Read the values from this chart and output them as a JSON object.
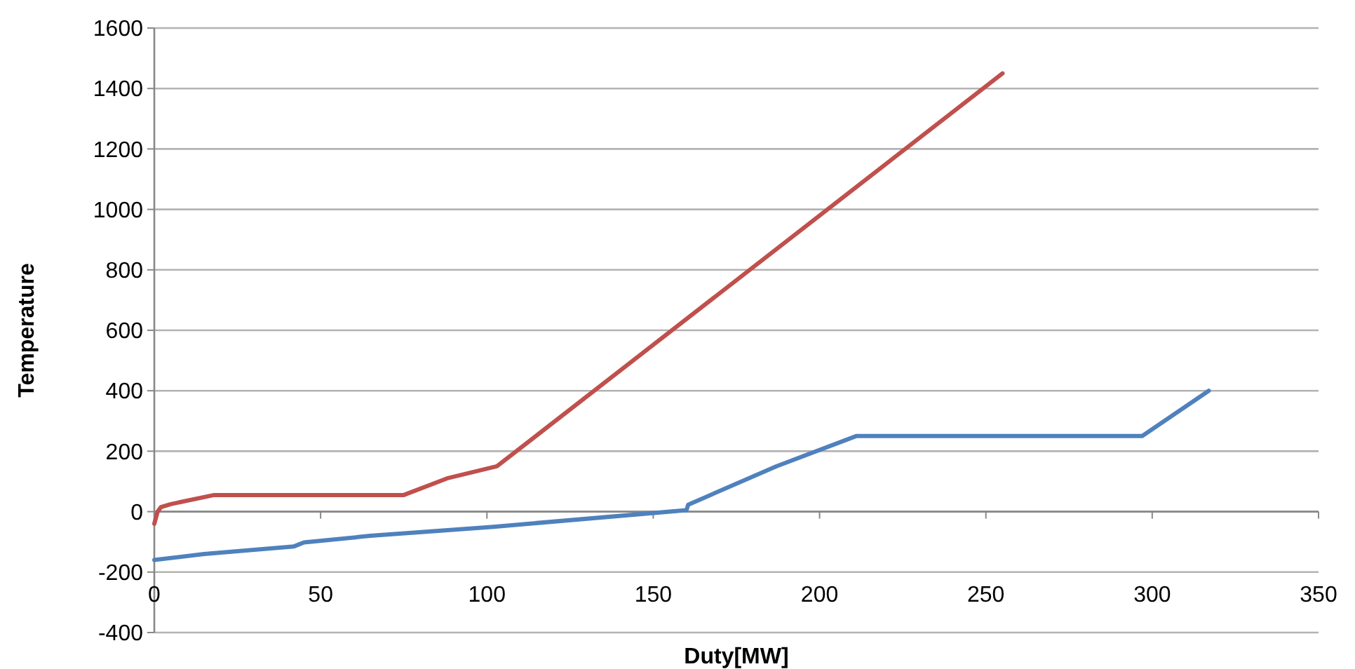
{
  "chart_data": {
    "type": "line",
    "xlabel": "Duty[MW]",
    "ylabel": "Temperature",
    "xlim": [
      0,
      350
    ],
    "xticks": [
      0,
      50,
      100,
      150,
      200,
      250,
      300,
      350
    ],
    "ylim": [
      -400,
      1600
    ],
    "yticks": [
      -400,
      -200,
      0,
      200,
      400,
      600,
      800,
      1000,
      1200,
      1400,
      1600
    ],
    "grid": "y",
    "line_style": "solid",
    "series": [
      {
        "color": "#c0504d",
        "x": [
          0,
          1,
          2,
          5,
          18,
          75,
          88,
          103,
          255
        ],
        "values": [
          -40,
          0,
          15,
          25,
          55,
          55,
          110,
          150,
          1450
        ]
      },
      {
        "color": "#4f81bd",
        "x": [
          0,
          15,
          42,
          45,
          65,
          102,
          160,
          160.5,
          187,
          211,
          297,
          317
        ],
        "values": [
          -160,
          -140,
          -115,
          -102,
          -80,
          -50,
          5,
          23,
          150,
          250,
          250,
          400
        ]
      }
    ]
  }
}
